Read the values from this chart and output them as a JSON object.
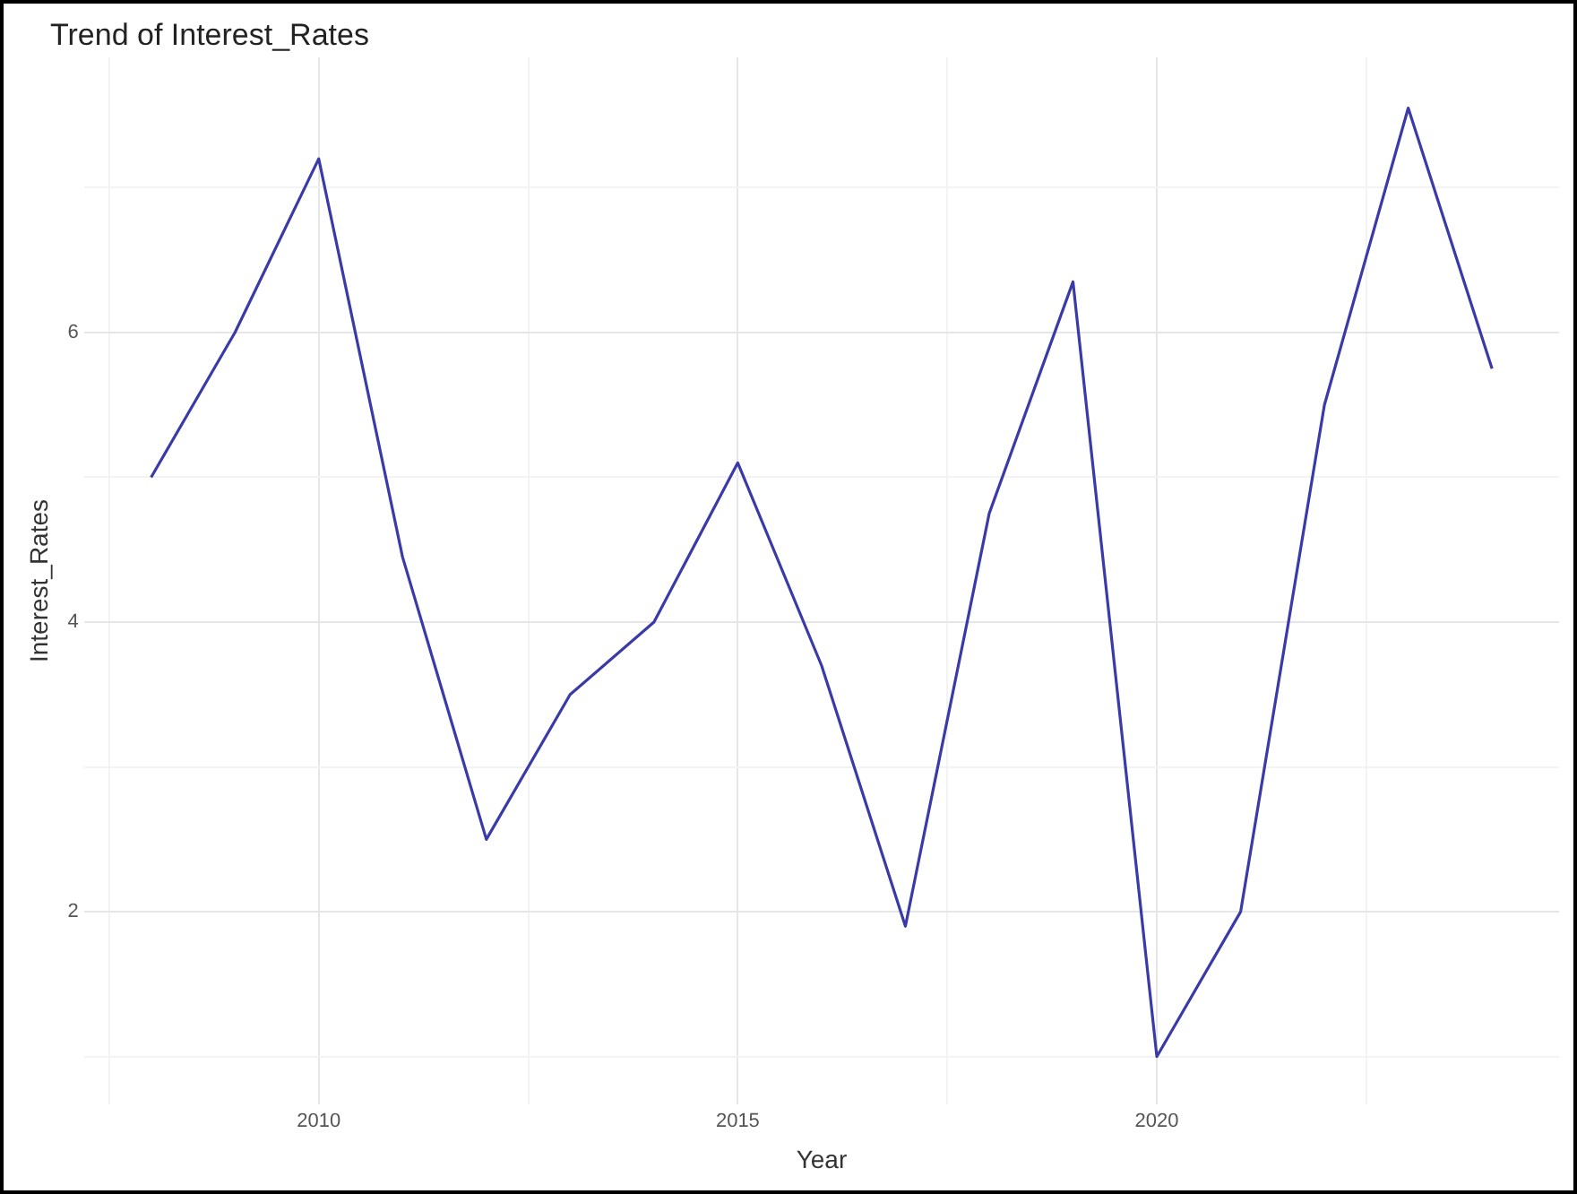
{
  "chart_data": {
    "type": "line",
    "title": "Trend of Interest_Rates",
    "xlabel": "Year",
    "ylabel": "Interest_Rates",
    "x": [
      2008,
      2009,
      2010,
      2011,
      2012,
      2013,
      2014,
      2015,
      2016,
      2017,
      2018,
      2019,
      2020,
      2021,
      2022,
      2023,
      2024
    ],
    "series": [
      {
        "color": "#3a3aa8",
        "values": [
          5.0,
          6.0,
          7.2,
          4.45,
          2.5,
          3.5,
          4.0,
          5.1,
          3.7,
          1.9,
          4.75,
          6.35,
          1.0,
          2.0,
          5.5,
          7.55,
          5.75
        ]
      }
    ],
    "xlim": [
      2007.2,
      2024.8
    ],
    "ylim": [
      0.67,
      7.9
    ],
    "xticks": [
      {
        "value": 2007.5,
        "label": null
      },
      2010,
      {
        "value": 2012.5,
        "label": null
      },
      2015,
      {
        "value": 2017.5,
        "label": null
      },
      2020,
      {
        "value": 2022.5,
        "label": null
      }
    ],
    "yticks": [
      {
        "value": 1,
        "label": null
      },
      2,
      {
        "value": 3,
        "label": null
      },
      4,
      {
        "value": 5,
        "label": null
      },
      6,
      {
        "value": 7,
        "label": null
      }
    ],
    "grid": true,
    "legend": false,
    "marker": "none",
    "line_style": "solid"
  }
}
